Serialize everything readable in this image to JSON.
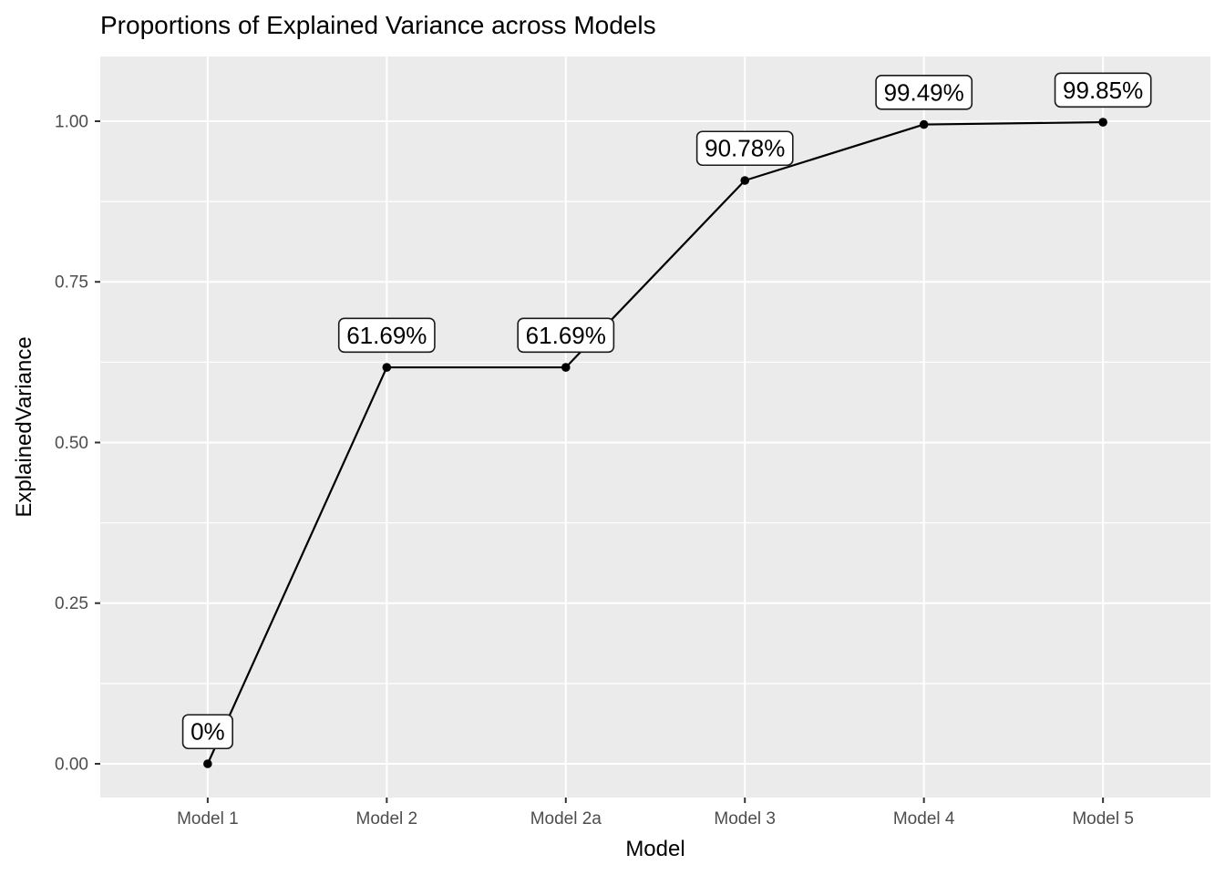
{
  "chart_data": {
    "type": "line",
    "title": "Proportions of Explained Variance across Models",
    "xlabel": "Model",
    "ylabel": "ExplainedVariance",
    "categories": [
      "Model 1",
      "Model 2",
      "Model 2a",
      "Model 3",
      "Model 4",
      "Model 5"
    ],
    "series": [
      {
        "name": "ExplainedVariance",
        "values": [
          0.0,
          0.6169,
          0.6169,
          0.9078,
          0.9949,
          0.9985
        ],
        "point_labels": [
          "0%",
          "61.69%",
          "61.69%",
          "90.78%",
          "99.49%",
          "99.85%"
        ]
      }
    ],
    "y_axis": {
      "tick_values": [
        0.0,
        0.25,
        0.5,
        0.75,
        1.0
      ],
      "tick_labels": [
        "0.00",
        "0.25",
        "0.50",
        "0.75",
        "1.00"
      ],
      "minor_tick_values": [
        0.125,
        0.375,
        0.625,
        0.875
      ],
      "limits": [
        -0.0525,
        1.1007
      ]
    },
    "label_nudge_y": 0.05,
    "grid": true,
    "legend_position": "none",
    "colors": {
      "page_bg": "#FFFFFF",
      "panel_bg": "#EBEBEB",
      "grid": "#FFFFFF",
      "line": "#000000",
      "point": "#000000",
      "label_bg": "#FFFFFF",
      "label_border": "#1A1A1A",
      "label_text": "#000000",
      "tick_mark": "#333333",
      "tick_label": "#4D4D4D",
      "title": "#000000",
      "axis_title": "#000000"
    }
  }
}
